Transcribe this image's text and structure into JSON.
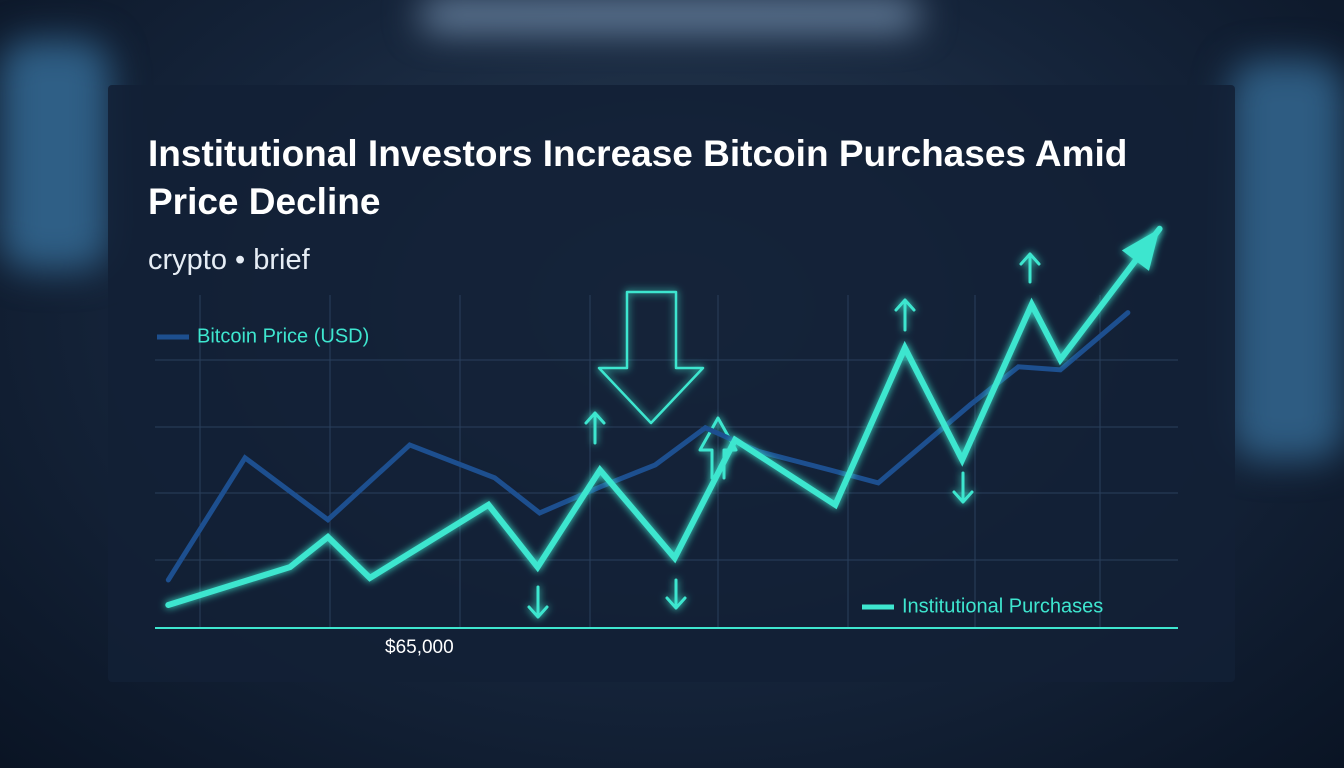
{
  "chart_data": {
    "type": "line",
    "title": "Institutional Investors Increase Bitcoin Purchases Amid Price Decline",
    "subtitle": "crypto • brief",
    "annotation": "$65,000",
    "xlim": [
      0,
      100
    ],
    "ylim": [
      0,
      120
    ],
    "grid": true,
    "series": [
      {
        "name": "Bitcoin Price (USD)",
        "color": "#1d4f8f",
        "x": [
          1.3,
          8.8,
          16.9,
          24.9,
          33.2,
          37.6,
          43.5,
          48.9,
          53.8,
          59.1,
          66.0,
          70.7,
          79.7,
          84.4,
          88.5,
          95.1
        ],
        "values": [
          14.2,
          50.3,
          32.0,
          54.1,
          44.4,
          34.0,
          41.7,
          48.2,
          59.2,
          52.1,
          46.7,
          42.9,
          66.0,
          77.2,
          76.3,
          93.2
        ]
      },
      {
        "name": "Institutional Purchases",
        "color": "#3ee6cf",
        "x": [
          1.3,
          13.2,
          16.9,
          21.0,
          32.6,
          37.4,
          43.5,
          50.8,
          56.7,
          66.5,
          73.3,
          78.9,
          85.7,
          88.5,
          98.2
        ],
        "values": [
          6.8,
          18.0,
          26.9,
          14.8,
          36.4,
          18.0,
          46.7,
          20.7,
          55.6,
          36.4,
          82.8,
          49.7,
          95.6,
          79.3,
          118
        ]
      }
    ]
  }
}
